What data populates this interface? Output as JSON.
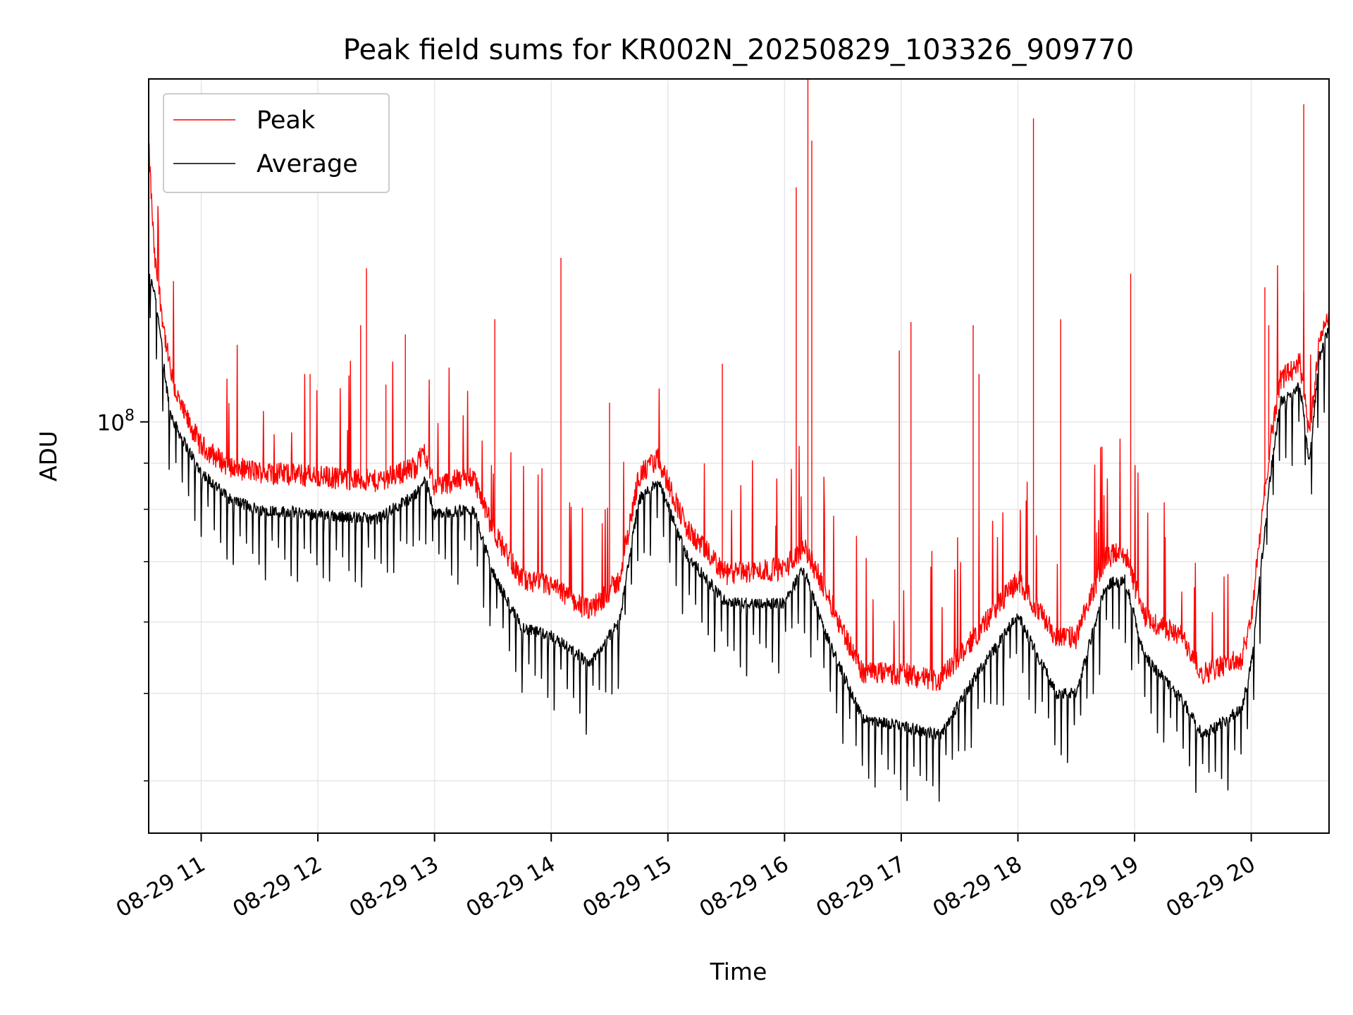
{
  "chart_data": {
    "type": "line",
    "title": "Peak field sums for KR002N_20250829_103326_909770",
    "xlabel": "Time",
    "ylabel": "ADU",
    "x_scale": "time",
    "y_scale": "log",
    "x_range": [
      "2025-08-29 10:33",
      "2025-08-29 20:40"
    ],
    "ylim": [
      35000000,
      240000000
    ],
    "xticks": [
      "08-29 11",
      "08-29 12",
      "08-29 13",
      "08-29 14",
      "08-29 15",
      "08-29 16",
      "08-29 17",
      "08-29 18",
      "08-29 19",
      "08-29 20"
    ],
    "ytick_major": {
      "value": 100000000,
      "base": "10",
      "exponent": "8"
    },
    "ytick_minor": [
      40000000,
      50000000,
      60000000,
      70000000,
      80000000,
      90000000
    ],
    "grid": true,
    "legend": {
      "position": "top-left",
      "entries": [
        "Peak",
        "Average"
      ]
    },
    "colors": {
      "Peak": "#ff0000",
      "Average": "#000000"
    },
    "series": [
      {
        "name": "Peak",
        "color": "#ff0000",
        "baseline": [
          [
            "2025-08-29 10:33",
            200000000
          ],
          [
            "2025-08-29 10:36",
            150000000
          ],
          [
            "2025-08-29 10:38",
            140000000
          ],
          [
            "2025-08-29 10:42",
            120000000
          ],
          [
            "2025-08-29 10:45",
            110000000
          ],
          [
            "2025-08-29 10:50",
            102000000
          ],
          [
            "2025-08-29 11:00",
            93000000
          ],
          [
            "2025-08-29 11:15",
            88000000
          ],
          [
            "2025-08-29 11:30",
            87000000
          ],
          [
            "2025-08-29 12:00",
            86000000
          ],
          [
            "2025-08-29 12:30",
            85000000
          ],
          [
            "2025-08-29 12:50",
            88000000
          ],
          [
            "2025-08-29 12:55",
            92000000
          ],
          [
            "2025-08-29 13:00",
            84000000
          ],
          [
            "2025-08-29 13:20",
            86000000
          ],
          [
            "2025-08-29 13:30",
            75000000
          ],
          [
            "2025-08-29 13:45",
            66000000
          ],
          [
            "2025-08-29 14:00",
            65000000
          ],
          [
            "2025-08-29 14:20",
            61000000
          ],
          [
            "2025-08-29 14:35",
            66000000
          ],
          [
            "2025-08-29 14:45",
            86000000
          ],
          [
            "2025-08-29 14:55",
            90000000
          ],
          [
            "2025-08-29 15:10",
            75000000
          ],
          [
            "2025-08-29 15:30",
            67000000
          ],
          [
            "2025-08-29 16:00",
            68000000
          ],
          [
            "2025-08-29 16:10",
            72000000
          ],
          [
            "2025-08-29 16:20",
            65000000
          ],
          [
            "2025-08-29 16:40",
            52000000
          ],
          [
            "2025-08-29 17:00",
            52000000
          ],
          [
            "2025-08-29 17:20",
            51000000
          ],
          [
            "2025-08-29 17:40",
            58000000
          ],
          [
            "2025-08-29 18:00",
            66000000
          ],
          [
            "2025-08-29 18:20",
            57000000
          ],
          [
            "2025-08-29 18:30",
            57000000
          ],
          [
            "2025-08-29 18:45",
            70000000
          ],
          [
            "2025-08-29 18:55",
            71000000
          ],
          [
            "2025-08-29 19:05",
            60000000
          ],
          [
            "2025-08-29 19:25",
            57000000
          ],
          [
            "2025-08-29 19:35",
            52000000
          ],
          [
            "2025-08-29 19:55",
            54000000
          ],
          [
            "2025-08-29 20:00",
            60000000
          ],
          [
            "2025-08-29 20:10",
            95000000
          ],
          [
            "2025-08-29 20:15",
            110000000
          ],
          [
            "2025-08-29 20:25",
            115000000
          ],
          [
            "2025-08-29 20:30",
            95000000
          ],
          [
            "2025-08-29 20:35",
            122000000
          ],
          [
            "2025-08-29 20:40",
            130000000
          ]
        ],
        "spikes": [
          [
            "2025-08-29 11:56",
            113000000
          ],
          [
            "2025-08-29 12:22",
            128000000
          ],
          [
            "2025-08-29 12:25",
            148000000
          ],
          [
            "2025-08-29 12:35",
            110000000
          ],
          [
            "2025-08-29 12:45",
            125000000
          ],
          [
            "2025-08-29 13:31",
            130000000
          ],
          [
            "2025-08-29 14:05",
            152000000
          ],
          [
            "2025-08-29 14:30",
            105000000
          ],
          [
            "2025-08-29 15:28",
            116000000
          ],
          [
            "2025-08-29 16:06",
            182000000
          ],
          [
            "2025-08-29 16:12",
            240000000
          ],
          [
            "2025-08-29 16:14",
            205000000
          ],
          [
            "2025-08-29 16:59",
            120000000
          ],
          [
            "2025-08-29 17:05",
            129000000
          ],
          [
            "2025-08-29 17:37",
            128000000
          ],
          [
            "2025-08-29 17:40",
            113000000
          ],
          [
            "2025-08-29 18:08",
            217000000
          ],
          [
            "2025-08-29 18:22",
            130000000
          ],
          [
            "2025-08-29 18:58",
            146000000
          ],
          [
            "2025-08-29 20:07",
            141000000
          ],
          [
            "2025-08-29 20:09",
            128000000
          ],
          [
            "2025-08-29 20:27",
            225000000
          ]
        ]
      },
      {
        "name": "Average",
        "color": "#000000",
        "baseline": [
          [
            "2025-08-29 10:33",
            145000000
          ],
          [
            "2025-08-29 10:36",
            140000000
          ],
          [
            "2025-08-29 10:38",
            130000000
          ],
          [
            "2025-08-29 10:42",
            110000000
          ],
          [
            "2025-08-29 10:45",
            101000000
          ],
          [
            "2025-08-29 10:50",
            96000000
          ],
          [
            "2025-08-29 11:00",
            88000000
          ],
          [
            "2025-08-29 11:15",
            82000000
          ],
          [
            "2025-08-29 11:30",
            80000000
          ],
          [
            "2025-08-29 12:00",
            79000000
          ],
          [
            "2025-08-29 12:30",
            78000000
          ],
          [
            "2025-08-29 12:50",
            83000000
          ],
          [
            "2025-08-29 12:55",
            87000000
          ],
          [
            "2025-08-29 13:00",
            79000000
          ],
          [
            "2025-08-29 13:20",
            80000000
          ],
          [
            "2025-08-29 13:30",
            68000000
          ],
          [
            "2025-08-29 13:45",
            59000000
          ],
          [
            "2025-08-29 14:00",
            58000000
          ],
          [
            "2025-08-29 14:20",
            54000000
          ],
          [
            "2025-08-29 14:35",
            60000000
          ],
          [
            "2025-08-29 14:45",
            82000000
          ],
          [
            "2025-08-29 14:55",
            86000000
          ],
          [
            "2025-08-29 15:10",
            71000000
          ],
          [
            "2025-08-29 15:30",
            63000000
          ],
          [
            "2025-08-29 16:00",
            63000000
          ],
          [
            "2025-08-29 16:10",
            69000000
          ],
          [
            "2025-08-29 16:20",
            59000000
          ],
          [
            "2025-08-29 16:40",
            47000000
          ],
          [
            "2025-08-29 17:00",
            46000000
          ],
          [
            "2025-08-29 17:20",
            45000000
          ],
          [
            "2025-08-29 17:40",
            53000000
          ],
          [
            "2025-08-29 18:00",
            61000000
          ],
          [
            "2025-08-29 18:20",
            50000000
          ],
          [
            "2025-08-29 18:30",
            50000000
          ],
          [
            "2025-08-29 18:45",
            66000000
          ],
          [
            "2025-08-29 18:55",
            67000000
          ],
          [
            "2025-08-29 19:05",
            55000000
          ],
          [
            "2025-08-29 19:25",
            49000000
          ],
          [
            "2025-08-29 19:35",
            45000000
          ],
          [
            "2025-08-29 19:55",
            48000000
          ],
          [
            "2025-08-29 20:00",
            54000000
          ],
          [
            "2025-08-29 20:10",
            88000000
          ],
          [
            "2025-08-29 20:15",
            105000000
          ],
          [
            "2025-08-29 20:25",
            110000000
          ],
          [
            "2025-08-29 20:30",
            90000000
          ],
          [
            "2025-08-29 20:35",
            118000000
          ],
          [
            "2025-08-29 20:40",
            127000000
          ]
        ]
      }
    ]
  }
}
